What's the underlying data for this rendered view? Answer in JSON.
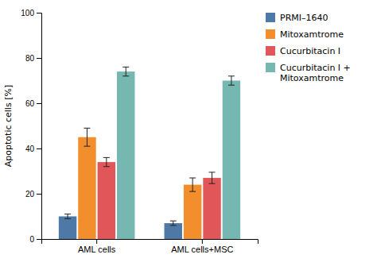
{
  "chart_data": {
    "type": "bar",
    "ylabel": "Apoptotic cells [%]",
    "categories": [
      "AML cells",
      "AML cells+MSC"
    ],
    "series": [
      {
        "name": "PRMI–1640",
        "values": [
          10,
          7
        ],
        "errors": [
          1.0,
          1.0
        ]
      },
      {
        "name": "Mitoxamtrome",
        "values": [
          45,
          24
        ],
        "errors": [
          4.0,
          3.0
        ]
      },
      {
        "name": "Cucurbitacin I",
        "values": [
          34,
          27
        ],
        "errors": [
          2.0,
          2.5
        ]
      },
      {
        "name": "Cucurbitacin I +\nMitoxamtrome",
        "values": [
          74,
          70
        ],
        "errors": [
          2.0,
          2.0
        ]
      }
    ],
    "ylim": [
      0,
      100
    ],
    "yticks": [
      0,
      20,
      40,
      60,
      80,
      100
    ],
    "grid": false,
    "legend": "upper right"
  }
}
